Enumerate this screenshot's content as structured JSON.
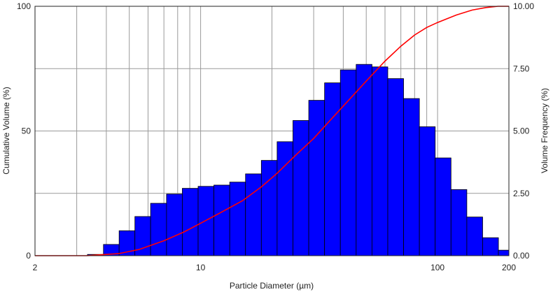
{
  "chart_data": {
    "type": "bar",
    "xlabel": "Particle Diameter (µm)",
    "ylabel_left": "Cumulative Volume (%)",
    "ylabel_right": "Volume Frequency (%)",
    "x_scale": "log",
    "xlim": [
      2,
      200
    ],
    "x_ticks": [
      2,
      10,
      100,
      200
    ],
    "x_gridlines": [
      3,
      4,
      5,
      6,
      7,
      8,
      9,
      10,
      20,
      30,
      40,
      50,
      60,
      70,
      80,
      90,
      100,
      200
    ],
    "ylim_left": [
      0,
      100
    ],
    "y_ticks_left": [
      0,
      50,
      100
    ],
    "ylim_right": [
      0,
      10
    ],
    "y_ticks_right": [
      "0.00",
      "2.50",
      "5.00",
      "7.50",
      "10.00"
    ],
    "grid": true,
    "series": [
      {
        "type": "bar",
        "axis": "right",
        "color": "#0000ff",
        "bins": [
          {
            "x0": 3.33,
            "x1": 3.89,
            "value": 0.05
          },
          {
            "x0": 3.89,
            "x1": 4.53,
            "value": 0.45
          },
          {
            "x0": 4.53,
            "x1": 5.28,
            "value": 1.0
          },
          {
            "x0": 5.28,
            "x1": 6.15,
            "value": 1.57
          },
          {
            "x0": 6.15,
            "x1": 7.18,
            "value": 2.1
          },
          {
            "x0": 7.18,
            "x1": 8.37,
            "value": 2.47
          },
          {
            "x0": 8.37,
            "x1": 9.76,
            "value": 2.7
          },
          {
            "x0": 9.76,
            "x1": 11.38,
            "value": 2.78
          },
          {
            "x0": 11.38,
            "x1": 13.27,
            "value": 2.83
          },
          {
            "x0": 13.27,
            "x1": 15.47,
            "value": 2.95
          },
          {
            "x0": 15.47,
            "x1": 18.04,
            "value": 3.28
          },
          {
            "x0": 18.04,
            "x1": 21.03,
            "value": 3.82
          },
          {
            "x0": 21.03,
            "x1": 24.53,
            "value": 4.57
          },
          {
            "x0": 24.53,
            "x1": 28.6,
            "value": 5.42
          },
          {
            "x0": 28.6,
            "x1": 33.35,
            "value": 6.23
          },
          {
            "x0": 33.35,
            "x1": 38.88,
            "value": 6.93
          },
          {
            "x0": 38.88,
            "x1": 45.34,
            "value": 7.45
          },
          {
            "x0": 45.34,
            "x1": 52.86,
            "value": 7.67
          },
          {
            "x0": 52.86,
            "x1": 61.64,
            "value": 7.57
          },
          {
            "x0": 61.64,
            "x1": 71.87,
            "value": 7.1
          },
          {
            "x0": 71.87,
            "x1": 83.81,
            "value": 6.3
          },
          {
            "x0": 83.81,
            "x1": 97.72,
            "value": 5.17
          },
          {
            "x0": 97.72,
            "x1": 113.95,
            "value": 3.92
          },
          {
            "x0": 113.95,
            "x1": 132.87,
            "value": 2.65
          },
          {
            "x0": 132.87,
            "x1": 154.93,
            "value": 1.55
          },
          {
            "x0": 154.93,
            "x1": 180.65,
            "value": 0.72
          },
          {
            "x0": 180.65,
            "x1": 210.64,
            "value": 0.22
          }
        ]
      },
      {
        "type": "line",
        "axis": "left",
        "color": "#ff0000",
        "x": [
          2,
          3.3,
          4.5,
          5.5,
          7,
          8.5,
          10,
          12,
          15,
          18,
          21,
          25,
          30,
          35,
          40,
          50,
          60,
          70,
          80,
          90,
          100,
          120,
          140,
          160,
          180,
          200
        ],
        "y": [
          0,
          0,
          0.8,
          2.5,
          6,
          9.5,
          13,
          17,
          22,
          27.5,
          33,
          40,
          47,
          54,
          60,
          70,
          78,
          84,
          88.5,
          91.5,
          93.5,
          96.5,
          98.5,
          99.5,
          100,
          100
        ]
      }
    ]
  }
}
